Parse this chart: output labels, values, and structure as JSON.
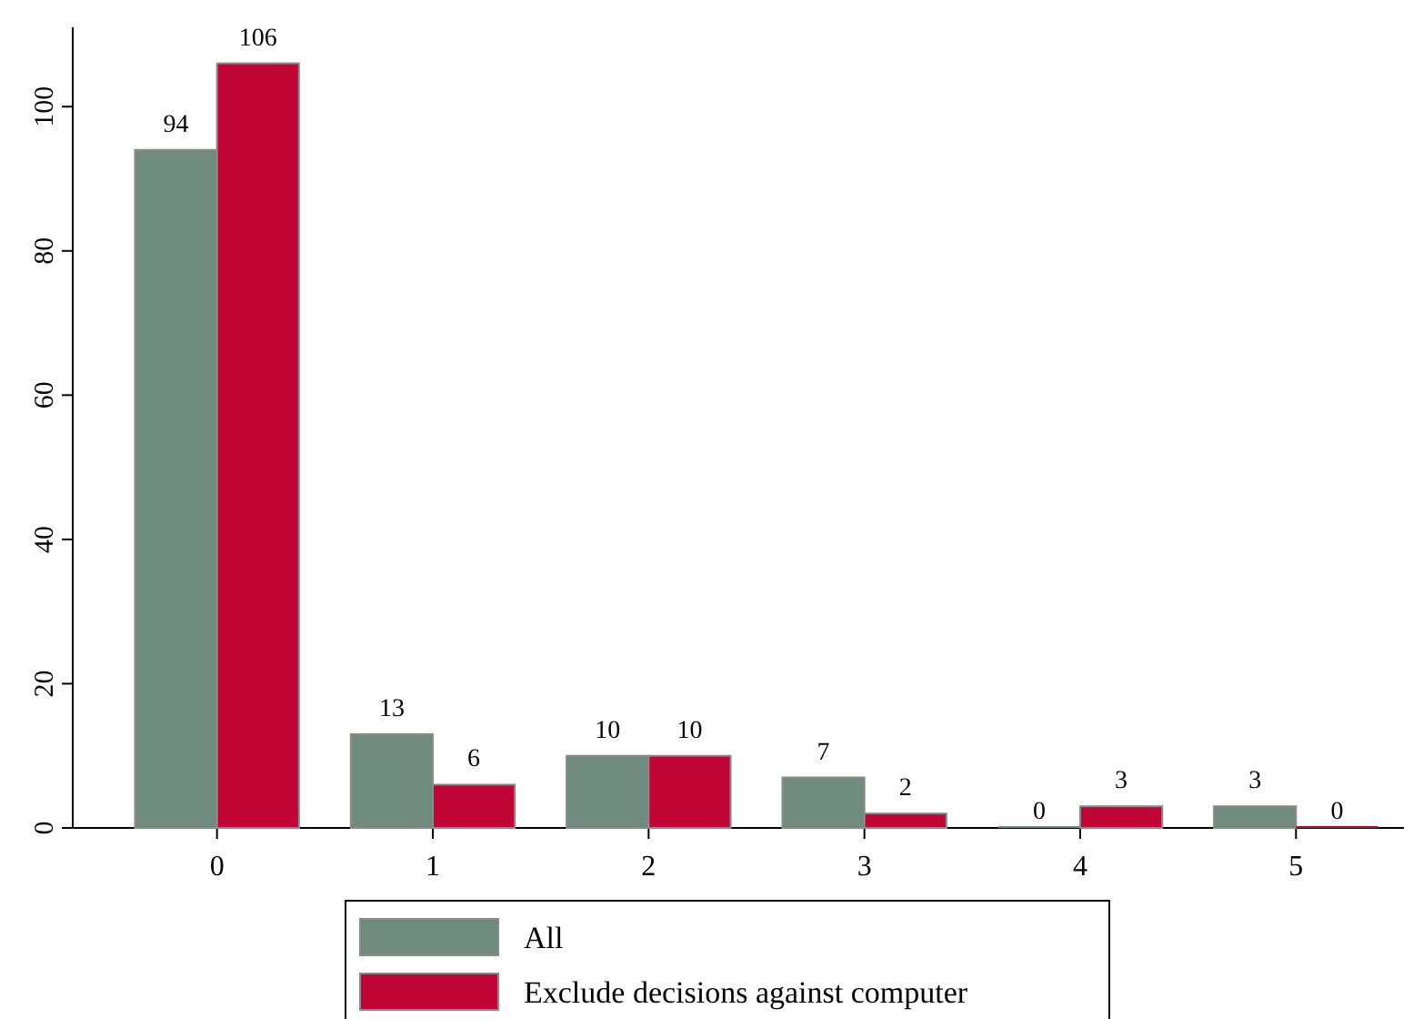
{
  "chart_data": {
    "type": "bar",
    "categories": [
      "0",
      "1",
      "2",
      "3",
      "4",
      "5"
    ],
    "series": [
      {
        "name": "All",
        "color": "#6f8b7e",
        "values": [
          94,
          13,
          10,
          7,
          0,
          3
        ]
      },
      {
        "name": "Exclude decisions against computer",
        "color": "#c10534",
        "values": [
          106,
          6,
          10,
          2,
          3,
          0
        ]
      }
    ],
    "ylim": [
      0,
      111
    ],
    "yticks": [
      0,
      20,
      40,
      60,
      80,
      100
    ],
    "data_labels": true,
    "legend": "bottom",
    "grid": false
  }
}
